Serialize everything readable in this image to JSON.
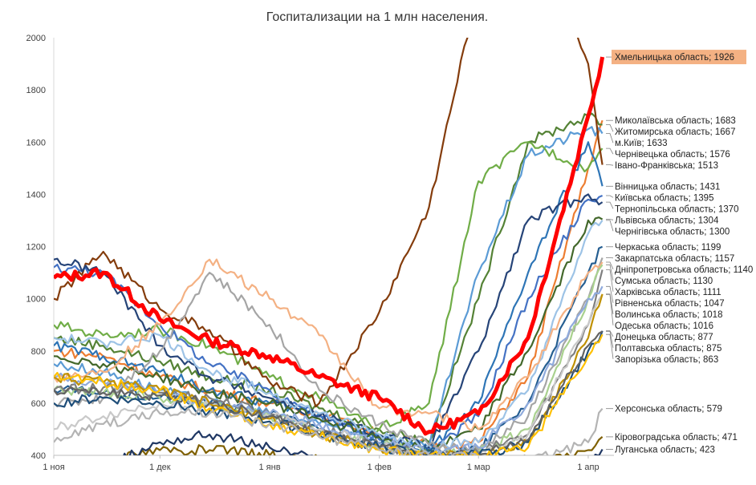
{
  "chart_data": {
    "type": "line",
    "title": "Госпитализации на 1 млн населения.",
    "xlabel": "",
    "ylabel": "",
    "ylim": [
      400,
      2000
    ],
    "yticks": [
      400,
      600,
      800,
      1000,
      1200,
      1400,
      1600,
      1800,
      2000
    ],
    "xlim": [
      "2020-11-01",
      "2021-04-06"
    ],
    "xticks": [
      {
        "date": "2020-11-01",
        "label": "1 ноя"
      },
      {
        "date": "2020-12-01",
        "label": "1 дек"
      },
      {
        "date": "2021-01-01",
        "label": "1 янв"
      },
      {
        "date": "2021-02-01",
        "label": "1 фев"
      },
      {
        "date": "2021-03-01",
        "label": "1 мар"
      },
      {
        "date": "2021-04-01",
        "label": "1 апр"
      }
    ],
    "grid": false,
    "legend": "none",
    "x": [
      "2020-11-01",
      "2020-11-15",
      "2020-12-01",
      "2020-12-15",
      "2021-01-01",
      "2021-01-15",
      "2021-02-01",
      "2021-02-15",
      "2021-03-01",
      "2021-03-15",
      "2021-04-01",
      "2021-04-05"
    ],
    "highlight_color": "#FF0000",
    "highlight_label_bg": "#F4B183",
    "series": [
      {
        "name": "Хмельницька область",
        "label": "Хмельницька область; 1926",
        "color": "#FF0000",
        "highlight": true,
        "values": [
          1080,
          1100,
          920,
          840,
          780,
          700,
          620,
          490,
          560,
          850,
          1700,
          1926
        ]
      },
      {
        "name": "Миколаївська область",
        "label": "Миколаївська область; 1683",
        "color": "#ED7D31",
        "values": [
          800,
          780,
          700,
          650,
          600,
          560,
          480,
          440,
          450,
          700,
          1500,
          1683
        ]
      },
      {
        "name": "Житомирська область",
        "label": "Житомирська область; 1667",
        "color": "#548235",
        "values": [
          850,
          820,
          760,
          700,
          650,
          580,
          500,
          450,
          1000,
          1600,
          1700,
          1667
        ]
      },
      {
        "name": "м.Київ",
        "label": "м.Київ; 1633",
        "color": "#5B9BD5",
        "values": [
          750,
          720,
          650,
          600,
          560,
          520,
          470,
          430,
          1100,
          1550,
          1650,
          1633
        ]
      },
      {
        "name": "Чернівецька область",
        "label": "Чернівецька область; 1576",
        "color": "#70AD47",
        "values": [
          900,
          860,
          880,
          820,
          700,
          620,
          500,
          600,
          1450,
          1600,
          1500,
          1576
        ]
      },
      {
        "name": "Івано-Франківська",
        "label": "Івано-Франківська; 1513",
        "color": "#843C0C",
        "values": [
          1000,
          1180,
          960,
          880,
          680,
          600,
          950,
          1350,
          2200,
          2400,
          1900,
          1513
        ]
      },
      {
        "name": "Вінницька область",
        "label": "Вінницька область; 1431",
        "color": "#2E75B6",
        "values": [
          820,
          780,
          720,
          650,
          600,
          560,
          470,
          420,
          600,
          1100,
          1600,
          1431
        ]
      },
      {
        "name": "Київська область",
        "label": "Київська область; 1395",
        "color": "#4472C4",
        "values": [
          1120,
          1100,
          900,
          750,
          650,
          550,
          460,
          420,
          550,
          1000,
          1380,
          1395
        ]
      },
      {
        "name": "Тернопільська область",
        "label": "Тернопільська область; 1370",
        "color": "#264478",
        "values": [
          1150,
          1100,
          820,
          700,
          620,
          550,
          480,
          430,
          800,
          1300,
          1400,
          1370
        ]
      },
      {
        "name": "Львівська область",
        "label": "Львівська область; 1304",
        "color": "#43682B",
        "values": [
          780,
          750,
          700,
          640,
          600,
          540,
          470,
          420,
          500,
          800,
          1300,
          1304
        ]
      },
      {
        "name": "Чернігівська область",
        "label": "Чернігівська область; 1300",
        "color": "#9DC3E6",
        "values": [
          850,
          830,
          860,
          720,
          640,
          560,
          480,
          440,
          450,
          650,
          1250,
          1300
        ]
      },
      {
        "name": "Черкаська область",
        "label": "Черкаська область; 1199",
        "color": "#255E91",
        "values": [
          650,
          640,
          620,
          600,
          560,
          500,
          440,
          410,
          420,
          600,
          1100,
          1199
        ]
      },
      {
        "name": "Закарпатська область",
        "label": "Закарпатська область; 1157",
        "color": "#A5A5A5",
        "values": [
          600,
          620,
          800,
          1100,
          900,
          650,
          520,
          440,
          420,
          550,
          1000,
          1157
        ]
      },
      {
        "name": "Дніпропетровська область",
        "label": "Дніпропетровська область; 1140",
        "color": "#F4B183",
        "values": [
          700,
          720,
          900,
          1150,
          1000,
          860,
          580,
          560,
          500,
          700,
          1100,
          1140
        ]
      },
      {
        "name": "Сумська область",
        "label": "Сумська область; 1130",
        "color": "#A9D18E",
        "values": [
          650,
          640,
          620,
          590,
          550,
          500,
          440,
          410,
          410,
          500,
          1000,
          1130
        ]
      },
      {
        "name": "Харківська область",
        "label": "Харківська область; 1111",
        "color": "#7F7F7F",
        "values": [
          650,
          660,
          640,
          620,
          560,
          500,
          440,
          400,
          410,
          480,
          900,
          1111
        ]
      },
      {
        "name": "Рівненська область",
        "label": "Рівненська область; 1047",
        "color": "#8FAADC",
        "values": [
          700,
          680,
          650,
          600,
          560,
          520,
          450,
          410,
          430,
          600,
          1000,
          1047
        ]
      },
      {
        "name": "Одеська область",
        "label": "Одеська область; 1016",
        "color": "#C9C9C9",
        "values": [
          500,
          550,
          600,
          590,
          550,
          500,
          440,
          400,
          400,
          480,
          900,
          1016
        ]
      },
      {
        "name": "Волинська область",
        "label": "Волинська область; 1018",
        "color": "#BF9000",
        "values": [
          700,
          680,
          650,
          600,
          540,
          480,
          430,
          400,
          400,
          450,
          850,
          1018
        ]
      },
      {
        "name": "Донецька область",
        "label": "Донецька область; 877",
        "color": "#1F4E79",
        "values": [
          600,
          620,
          600,
          570,
          530,
          480,
          430,
          400,
          400,
          450,
          800,
          877
        ]
      },
      {
        "name": "Полтавська область",
        "label": "Полтавська область; 875",
        "color": "#636363",
        "values": [
          650,
          640,
          630,
          600,
          550,
          480,
          430,
          400,
          400,
          460,
          820,
          875
        ]
      },
      {
        "name": "Запорізька область",
        "label": "Запорізька область; 863",
        "color": "#FFC000",
        "values": [
          700,
          680,
          650,
          580,
          520,
          470,
          420,
          400,
          400,
          430,
          780,
          863
        ]
      },
      {
        "name": "Херсонська область",
        "label": "Херсонська область; 579",
        "color": "#B4B4B4",
        "values": [
          450,
          520,
          560,
          560,
          520,
          470,
          420,
          400,
          390,
          380,
          450,
          579
        ]
      },
      {
        "name": "Кіровоградська область",
        "label": "Кіровоградська область; 471",
        "color": "#7F6000",
        "values": [
          380,
          380,
          420,
          420,
          400,
          380,
          370,
          360,
          350,
          360,
          420,
          471
        ]
      },
      {
        "name": "Луганська область",
        "label": "Луганська область; 423",
        "color": "#203864",
        "values": [
          300,
          350,
          450,
          480,
          430,
          380,
          350,
          330,
          320,
          330,
          380,
          423
        ]
      }
    ]
  }
}
